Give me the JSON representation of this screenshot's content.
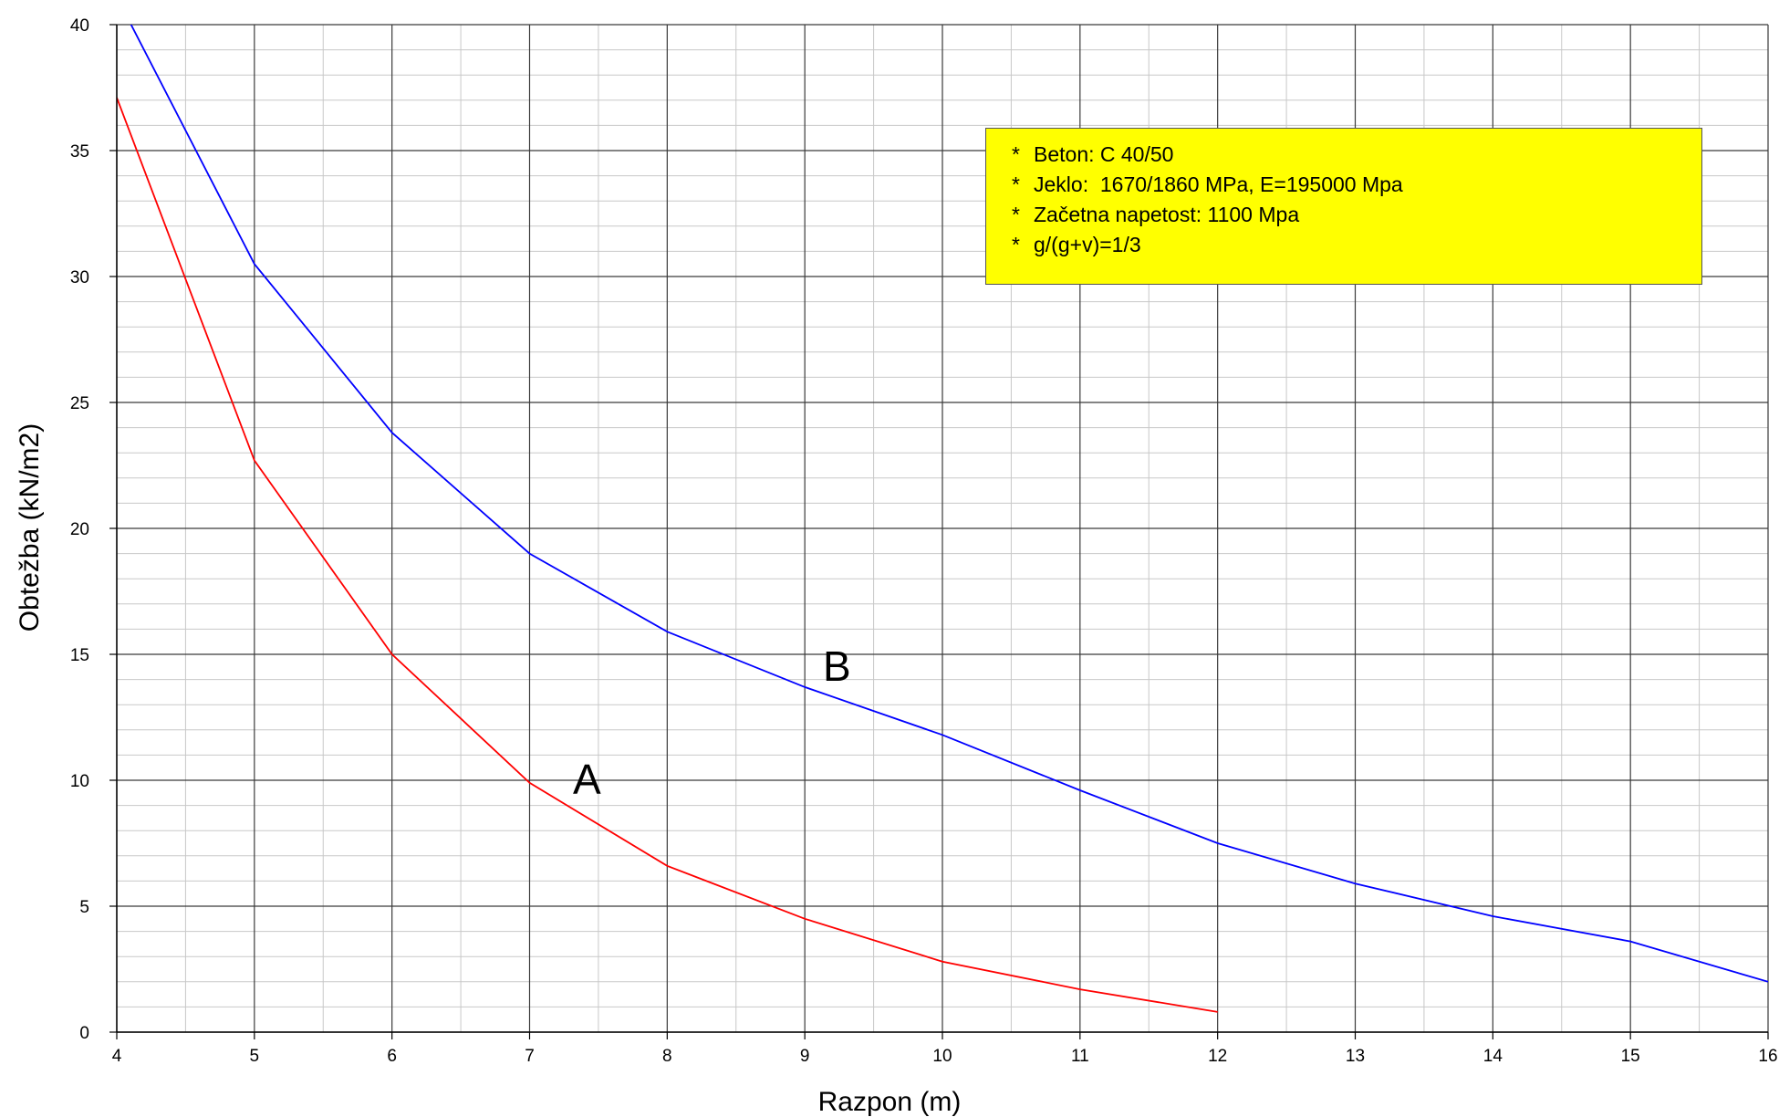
{
  "chart_data": {
    "type": "line",
    "xlabel": "Razpon (m)",
    "ylabel": "Obtežba (kN/m2)",
    "xlim": [
      4,
      16
    ],
    "ylim": [
      0,
      40
    ],
    "x_ticks": [
      4,
      5,
      6,
      7,
      8,
      9,
      10,
      11,
      12,
      13,
      14,
      15,
      16
    ],
    "y_ticks": [
      0,
      5,
      10,
      15,
      20,
      25,
      30,
      35,
      40
    ],
    "grid": true,
    "series": [
      {
        "name": "A",
        "color": "#ff0000",
        "x": [
          4,
          5,
          6,
          7,
          8,
          9,
          10,
          11,
          12
        ],
        "y": [
          37.1,
          22.7,
          15.0,
          9.9,
          6.6,
          4.5,
          2.8,
          1.7,
          0.8
        ]
      },
      {
        "name": "B",
        "color": "#0000ff",
        "x": [
          4,
          5,
          6,
          7,
          8,
          9,
          10,
          11,
          12,
          13,
          14,
          15,
          16
        ],
        "y": [
          41.1,
          30.5,
          23.8,
          19.0,
          15.9,
          13.7,
          11.8,
          9.6,
          7.5,
          5.9,
          4.6,
          3.6,
          2.0
        ]
      }
    ],
    "annotations": [
      "Beton: C 40/50",
      "Jeklo:  1670/1860 MPa, E=195000 Mpa",
      "Začetna napetost: 1100 Mpa",
      "g/(g+v)=1/3"
    ],
    "annotation_bullet": "*",
    "annotation_background": "#ffff00"
  }
}
